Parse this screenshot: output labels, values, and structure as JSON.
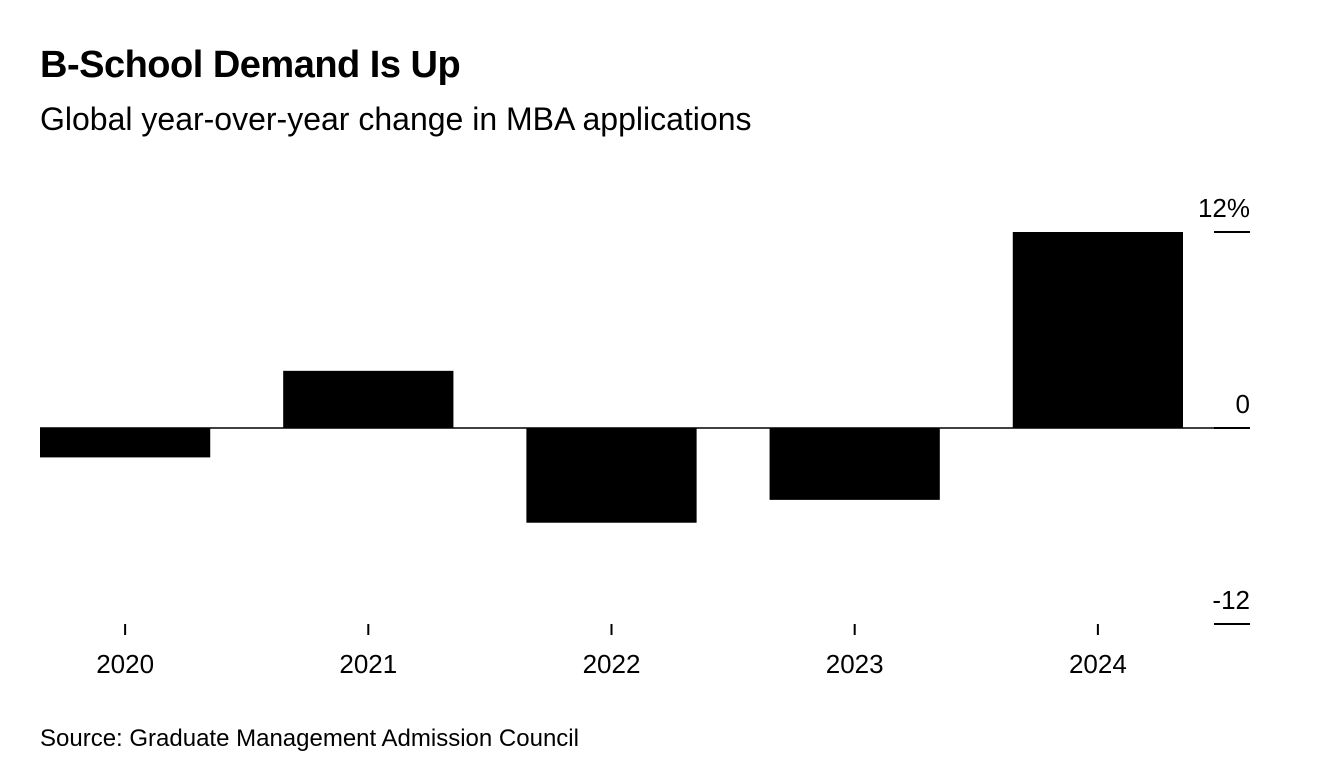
{
  "header": {
    "title": "B-School Demand Is Up",
    "subtitle": "Global year-over-year change in MBA applications"
  },
  "footer": {
    "source": "Source: Graduate Management Admission Council"
  },
  "colors": {
    "bar": "#000000",
    "axis": "#000000",
    "background": "#ffffff"
  },
  "chart_data": {
    "type": "bar",
    "title": "B-School Demand Is Up",
    "subtitle": "Global year-over-year change in MBA applications",
    "categories": [
      "2020",
      "2021",
      "2022",
      "2023",
      "2024"
    ],
    "values": [
      -1.8,
      3.5,
      -5.8,
      -4.4,
      12.0
    ],
    "xlabel": "",
    "ylabel": "",
    "ylim": [
      -12,
      12
    ],
    "y_ticks": [
      {
        "value": 12,
        "label": "12%"
      },
      {
        "value": 0,
        "label": "0"
      },
      {
        "value": -12,
        "label": "-12"
      }
    ],
    "y_axis_position": "right",
    "grid": false,
    "legend": "none"
  }
}
